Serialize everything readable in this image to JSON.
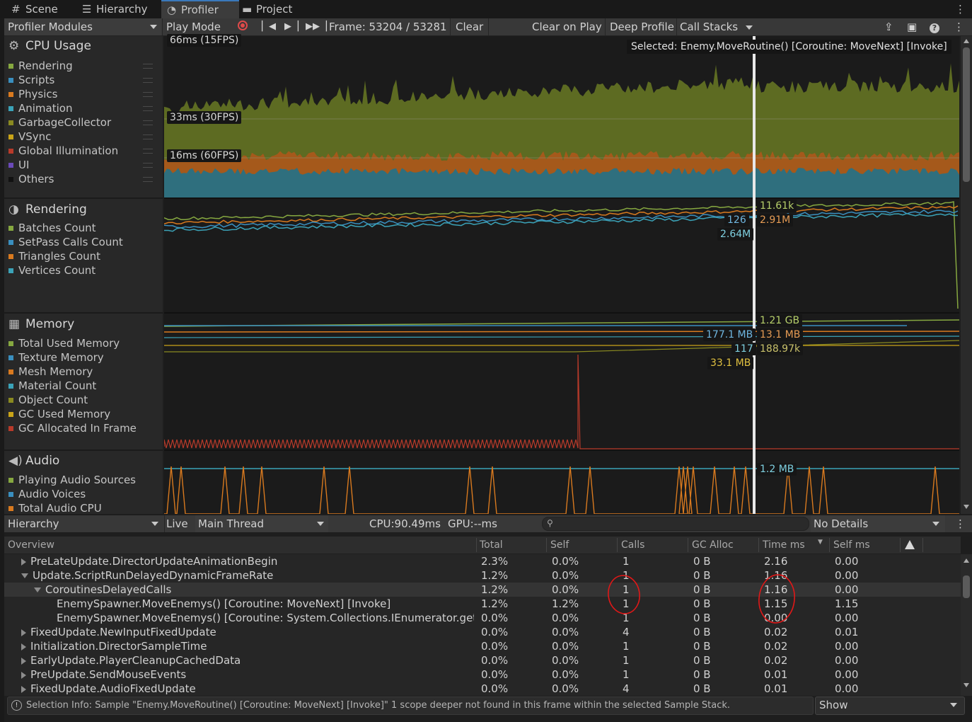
{
  "tabs": [
    {
      "label": "Scene",
      "icon": "grid-icon"
    },
    {
      "label": "Hierarchy",
      "icon": "list-icon"
    },
    {
      "label": "Profiler",
      "icon": "profiler-icon"
    },
    {
      "label": "Project",
      "icon": "folder-icon"
    }
  ],
  "toolbar": {
    "modules_label": "Profiler Modules",
    "play_mode_label": "Play Mode",
    "frame_label": "Frame: 53204 / 53281",
    "clear_label": "Clear",
    "clear_on_play_label": "Clear on Play",
    "deep_profile_label": "Deep Profile",
    "call_stacks_label": "Call Stacks"
  },
  "modules": {
    "cpu": {
      "title": "CPU Usage",
      "items": [
        {
          "label": "Rendering",
          "color": "#86a840"
        },
        {
          "label": "Scripts",
          "color": "#3a8fbf"
        },
        {
          "label": "Physics",
          "color": "#d97a1f"
        },
        {
          "label": "Animation",
          "color": "#3ba3b8"
        },
        {
          "label": "GarbageCollector",
          "color": "#8a8a20"
        },
        {
          "label": "VSync",
          "color": "#c9a418"
        },
        {
          "label": "Global Illumination",
          "color": "#b83a2a"
        },
        {
          "label": "UI",
          "color": "#6b4ab8"
        },
        {
          "label": "Others",
          "color": "#111111"
        }
      ],
      "labels": {
        "l66": "66ms (15FPS)",
        "l33": "33ms (30FPS)",
        "l16": "16ms (60FPS)"
      },
      "selected_tooltip": "Selected: Enemy.MoveRoutine() [Coroutine: MoveNext] [Invoke]"
    },
    "rendering": {
      "title": "Rendering",
      "items": [
        {
          "label": "Batches Count",
          "color": "#86a840"
        },
        {
          "label": "SetPass Calls Count",
          "color": "#3a8fbf"
        },
        {
          "label": "Triangles Count",
          "color": "#d97a1f"
        },
        {
          "label": "Vertices Count",
          "color": "#3ba3b8"
        }
      ],
      "values": {
        "v1": "11.61k",
        "v2": "126",
        "v3": "2.91M",
        "v4": "2.64M"
      }
    },
    "memory": {
      "title": "Memory",
      "items": [
        {
          "label": "Total Used Memory",
          "color": "#86a840"
        },
        {
          "label": "Texture Memory",
          "color": "#3a8fbf"
        },
        {
          "label": "Mesh Memory",
          "color": "#d97a1f"
        },
        {
          "label": "Material Count",
          "color": "#3ba3b8"
        },
        {
          "label": "Object Count",
          "color": "#8a8a20"
        },
        {
          "label": "GC Used Memory",
          "color": "#c9a418"
        },
        {
          "label": "GC Allocated In Frame",
          "color": "#b83a2a"
        }
      ],
      "values": {
        "v1": "1.21 GB",
        "v2": "177.1 MB",
        "v3": "13.1 MB",
        "v4": "117",
        "v5": "188.97k",
        "v6": "33.1 MB"
      }
    },
    "audio": {
      "title": "Audio",
      "items": [
        {
          "label": "Playing Audio Sources",
          "color": "#86a840"
        },
        {
          "label": "Audio Voices",
          "color": "#3a8fbf"
        },
        {
          "label": "Total Audio CPU",
          "color": "#d97a1f"
        }
      ],
      "values": {
        "v1": "1.2 MB"
      }
    }
  },
  "lower_toolbar": {
    "view_label": "Hierarchy",
    "live_label": "Live",
    "thread_label": "Main Thread",
    "cpu_label": "CPU:90.49ms",
    "gpu_label": "GPU:--ms",
    "details_label": "No Details"
  },
  "table": {
    "columns": [
      "Overview",
      "Total",
      "Self",
      "Calls",
      "GC Alloc",
      "Time ms",
      "Self ms"
    ],
    "rows": [
      {
        "name": "PreLateUpdate.DirectorUpdateAnimationBegin",
        "total": "2.3%",
        "self": "0.0%",
        "calls": "1",
        "gc": "0 B",
        "time": "2.16",
        "selfms": "0.00"
      },
      {
        "name": "Update.ScriptRunDelayedDynamicFrameRate",
        "total": "1.2%",
        "self": "0.0%",
        "calls": "1",
        "gc": "0 B",
        "time": "1.16",
        "selfms": "0.00"
      },
      {
        "name": "CoroutinesDelayedCalls",
        "total": "1.2%",
        "self": "0.0%",
        "calls": "1",
        "gc": "0 B",
        "time": "1.16",
        "selfms": "0.00"
      },
      {
        "name": "EnemySpawner.MoveEnemys() [Coroutine: MoveNext] [Invoke]",
        "total": "1.2%",
        "self": "1.2%",
        "calls": "1",
        "gc": "0 B",
        "time": "1.15",
        "selfms": "1.15"
      },
      {
        "name": "EnemySpawner.MoveEnemys() [Coroutine: System.Collections.IEnumerator.get_Cu",
        "total": "0.0%",
        "self": "0.0%",
        "calls": "1",
        "gc": "0 B",
        "time": "0.00",
        "selfms": "0.00"
      },
      {
        "name": "FixedUpdate.NewInputFixedUpdate",
        "total": "0.0%",
        "self": "0.0%",
        "calls": "4",
        "gc": "0 B",
        "time": "0.02",
        "selfms": "0.01"
      },
      {
        "name": "Initialization.DirectorSampleTime",
        "total": "0.0%",
        "self": "0.0%",
        "calls": "1",
        "gc": "0 B",
        "time": "0.02",
        "selfms": "0.00"
      },
      {
        "name": "EarlyUpdate.PlayerCleanupCachedData",
        "total": "0.0%",
        "self": "0.0%",
        "calls": "1",
        "gc": "0 B",
        "time": "0.02",
        "selfms": "0.00"
      },
      {
        "name": "PreUpdate.SendMouseEvents",
        "total": "0.0%",
        "self": "0.0%",
        "calls": "1",
        "gc": "0 B",
        "time": "0.01",
        "selfms": "0.00"
      },
      {
        "name": "FixedUpdate.AudioFixedUpdate",
        "total": "0.0%",
        "self": "0.0%",
        "calls": "4",
        "gc": "0 B",
        "time": "0.01",
        "selfms": "0.00"
      }
    ]
  },
  "status": {
    "selection_info": "Selection Info: Sample \"Enemy.MoveRoutine() [Coroutine: MoveNext] [Invoke]\" 1 scope deeper not found in this frame within the selected Sample Stack.",
    "show_label": "Show"
  }
}
